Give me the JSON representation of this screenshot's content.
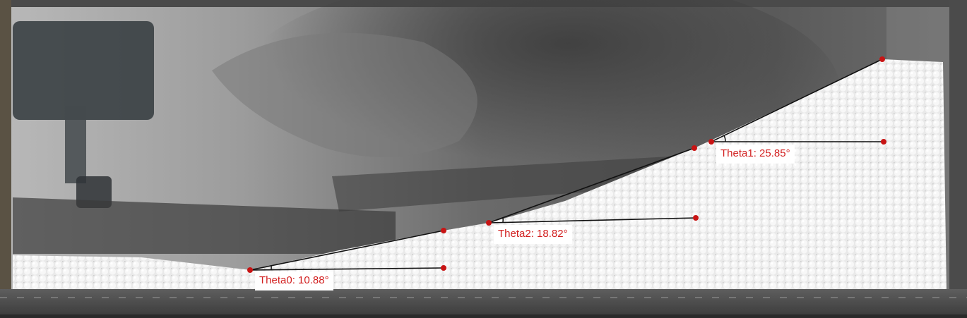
{
  "photo": {
    "subject": "granular bed of white beads in a glass tank",
    "annotation_color": "#d21f1f",
    "line_color": "#111111"
  },
  "angles": [
    {
      "id": "theta0",
      "label": "Theta0: 10.88°",
      "value_deg": 10.88
    },
    {
      "id": "theta2",
      "label": "Theta2: 18.82°",
      "value_deg": 18.82
    },
    {
      "id": "theta1",
      "label": "Theta1: 25.85°",
      "value_deg": 25.85
    }
  ]
}
